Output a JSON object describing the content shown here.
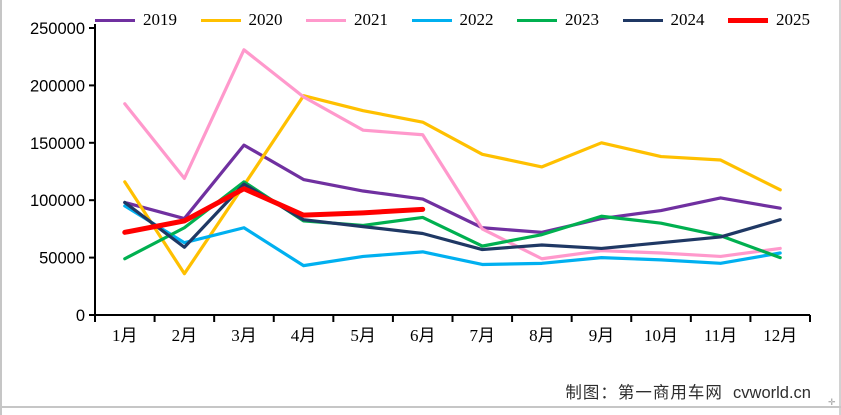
{
  "chart_data": {
    "type": "line",
    "title": "",
    "xlabel": "",
    "ylabel": "",
    "categories": [
      "1月",
      "2月",
      "3月",
      "4月",
      "5月",
      "6月",
      "7月",
      "8月",
      "9月",
      "10月",
      "11月",
      "12月"
    ],
    "ylim": [
      0,
      250000
    ],
    "yticks": [
      0,
      50000,
      100000,
      150000,
      200000,
      250000
    ],
    "ytick_labels": [
      "0",
      "50000",
      "100000",
      "150000",
      "200000",
      "250000"
    ],
    "grid": false,
    "legend_position": "top",
    "series": [
      {
        "name": "2019",
        "color": "#7030A0",
        "emphasis": false,
        "values": [
          98000,
          84000,
          148000,
          118000,
          108000,
          101000,
          76000,
          72000,
          84000,
          91000,
          102000,
          93000
        ]
      },
      {
        "name": "2020",
        "color": "#FFC000",
        "emphasis": false,
        "values": [
          116000,
          36000,
          113000,
          191000,
          178000,
          168000,
          140000,
          129000,
          150000,
          138000,
          135000,
          109000
        ]
      },
      {
        "name": "2021",
        "color": "#FF99CC",
        "emphasis": false,
        "values": [
          184000,
          119000,
          231000,
          190000,
          161000,
          157000,
          75000,
          49000,
          56000,
          54000,
          51000,
          58000
        ]
      },
      {
        "name": "2022",
        "color": "#00B0F0",
        "emphasis": false,
        "values": [
          95000,
          63000,
          76000,
          43000,
          51000,
          55000,
          44000,
          45000,
          50000,
          48000,
          45000,
          54000
        ]
      },
      {
        "name": "2023",
        "color": "#00B050",
        "emphasis": false,
        "values": [
          49000,
          76000,
          116000,
          82000,
          78000,
          85000,
          60000,
          70000,
          86000,
          80000,
          69000,
          50000
        ]
      },
      {
        "name": "2024",
        "color": "#1F3864",
        "emphasis": false,
        "values": [
          98000,
          59000,
          114000,
          83000,
          77000,
          71000,
          57000,
          61000,
          58000,
          63000,
          68000,
          83000
        ]
      },
      {
        "name": "2025",
        "color": "#FF0000",
        "emphasis": true,
        "values": [
          72000,
          82000,
          110000,
          87000,
          89000,
          92000,
          null,
          null,
          null,
          null,
          null,
          null
        ]
      }
    ]
  },
  "footer": {
    "label": "制图：第一商用车网",
    "site": "cvworld.cn"
  },
  "decoration": {
    "corner_mark": "✛"
  }
}
